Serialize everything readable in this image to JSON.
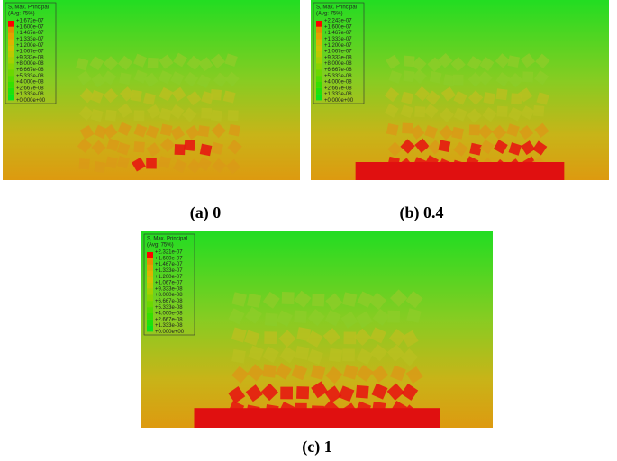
{
  "panels": [
    {
      "legend_title": "S, Max. Principal",
      "legend_subtitle": "(Avg: 75%)",
      "legend_labels": [
        "+1.672e-07",
        "+1.600e-07",
        "+1.467e-07",
        "+1.333e-07",
        "+1.200e-07",
        "+1.067e-07",
        "+9.333e-08",
        "+8.000e-08",
        "+6.667e-08",
        "+5.333e-08",
        "+4.000e-08",
        "+2.667e-08",
        "+1.333e-08",
        "+0.000e+00"
      ],
      "caption": "(a) 0"
    },
    {
      "legend_title": "S, Max. Principal",
      "legend_subtitle": "(Avg: 75%)",
      "legend_labels": [
        "+2.243e-07",
        "+1.600e-07",
        "+1.467e-07",
        "+1.333e-07",
        "+1.200e-07",
        "+1.067e-07",
        "+9.333e-08",
        "+8.000e-08",
        "+6.667e-08",
        "+5.333e-08",
        "+4.000e-08",
        "+2.667e-08",
        "+1.333e-08",
        "+0.000e+00"
      ],
      "caption": "(b) 0.4"
    },
    {
      "legend_title": "S, Max. Principal",
      "legend_subtitle": "(Avg: 75%)",
      "legend_labels": [
        "+2.321e-07",
        "+1.600e-07",
        "+1.467e-07",
        "+1.333e-07",
        "+1.200e-07",
        "+1.067e-07",
        "+9.333e-08",
        "+8.000e-08",
        "+6.667e-08",
        "+5.333e-08",
        "+4.000e-08",
        "+2.667e-08",
        "+1.333e-08",
        "+0.000e+00"
      ],
      "caption": "(c) 1"
    }
  ]
}
